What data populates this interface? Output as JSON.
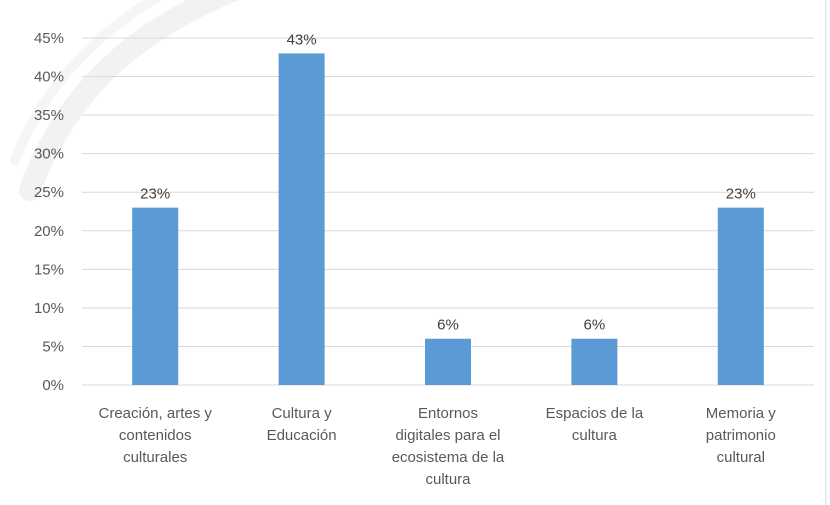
{
  "chart_data": {
    "type": "bar",
    "categories": [
      [
        "Creación, artes y",
        "contenidos",
        "culturales"
      ],
      [
        "Cultura y",
        "Educación"
      ],
      [
        "Entornos",
        "digitales para el",
        "ecosistema de la",
        "cultura"
      ],
      [
        "Espacios de la",
        "cultura"
      ],
      [
        "Memoria y",
        "patrimonio",
        "cultural"
      ]
    ],
    "values": [
      23,
      43,
      6,
      6,
      23
    ],
    "data_labels": [
      "23%",
      "43%",
      "6%",
      "6%",
      "23%"
    ],
    "y_ticks": [
      "0%",
      "5%",
      "10%",
      "15%",
      "20%",
      "25%",
      "30%",
      "35%",
      "40%",
      "45%"
    ],
    "ylim": [
      0,
      45
    ],
    "bar_color": "#5B9BD5",
    "grid_color": "#D9D9D9",
    "grid": true,
    "title": "",
    "xlabel": "",
    "ylabel": ""
  }
}
